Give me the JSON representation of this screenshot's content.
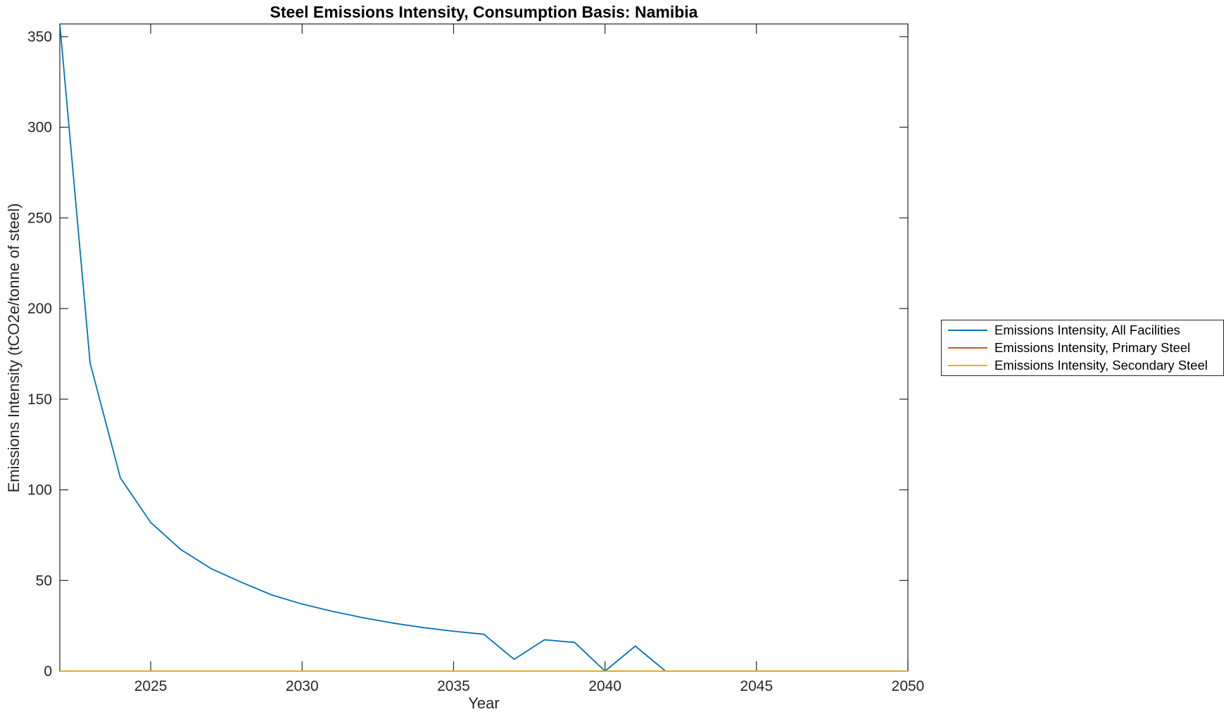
{
  "chart_data": {
    "type": "line",
    "title": "Steel Emissions Intensity, Consumption Basis: Namibia",
    "xlabel": "Year",
    "ylabel": "Emissions Intensity (tCO2e/tonne of steel)",
    "xlim": [
      2022,
      2050
    ],
    "ylim": [
      0,
      357
    ],
    "xticks": [
      2025,
      2030,
      2035,
      2040,
      2045,
      2050
    ],
    "yticks": [
      0,
      50,
      100,
      150,
      200,
      250,
      300,
      350
    ],
    "grid": false,
    "legend_position": "outside-right",
    "x": [
      2022,
      2023,
      2024,
      2025,
      2026,
      2027,
      2028,
      2029,
      2030,
      2031,
      2032,
      2033,
      2034,
      2035,
      2036,
      2037,
      2038,
      2039,
      2040,
      2041,
      2042,
      2043,
      2044,
      2045,
      2046,
      2047,
      2048,
      2049,
      2050
    ],
    "series": [
      {
        "name": "Emissions Intensity, All Facilities",
        "color": "#0072BD",
        "values": [
          357,
          170,
          106.5,
          82,
          67,
          56.5,
          49,
          42,
          37,
          33,
          29.5,
          26.5,
          24,
          22,
          20.3,
          6.5,
          17.3,
          15.8,
          0,
          13.8,
          0,
          0,
          0,
          0,
          0,
          0,
          0,
          0,
          0
        ]
      },
      {
        "name": "Emissions Intensity, Primary Steel",
        "color": "#D95319",
        "values": [
          0,
          0,
          0,
          0,
          0,
          0,
          0,
          0,
          0,
          0,
          0,
          0,
          0,
          0,
          0,
          0,
          0,
          0,
          0,
          0,
          0,
          0,
          0,
          0,
          0,
          0,
          0,
          0,
          0
        ]
      },
      {
        "name": "Emissions Intensity, Secondary Steel",
        "color": "#EDB120",
        "values": [
          0,
          0,
          0,
          0,
          0,
          0,
          0,
          0,
          0,
          0,
          0,
          0,
          0,
          0,
          0,
          0,
          0,
          0,
          0,
          0,
          0,
          0,
          0,
          0,
          0,
          0,
          0,
          0,
          0
        ]
      }
    ]
  }
}
